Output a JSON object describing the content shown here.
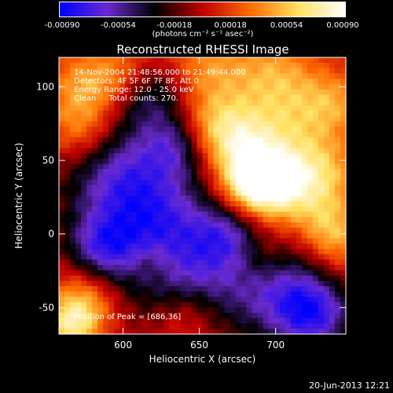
{
  "colorbar": {
    "tick_labels": [
      "-0.00090",
      "-0.00054",
      "-0.00018",
      "0.00018",
      "0.00054",
      "0.00090"
    ],
    "unit_label": "(photons cm⁻² s⁻¹ asec⁻²)"
  },
  "info": {
    "time_range": "14-Nov-2004 21:48:56.000 to 21:49:44.000",
    "detectors": "Detectors: 4F 5F 6F 7F 8F, Att 0",
    "energy_range": "Energy Range: 12.0 - 25.0 keV",
    "method_counts": "Clean     Total counts: 270.",
    "peak_position": "Position of Peak = [686,36]"
  },
  "footer": {
    "date": "20-Jun-2013 12:21"
  },
  "chart_data": {
    "type": "heatmap",
    "title": "Reconstructed RHESSI Image",
    "xlabel": "Heliocentric X (arcsec)",
    "ylabel": "Heliocentric Y (arcsec)",
    "xlim": [
      558,
      746
    ],
    "ylim": [
      -68,
      120
    ],
    "x_ticks": [
      600,
      650,
      700
    ],
    "y_ticks": [
      -50,
      0,
      50,
      100
    ],
    "color_range": [
      -0.0009,
      0.0009
    ],
    "peak": [
      686,
      36
    ],
    "colormap": [
      "#0000ff",
      "#6a2ad0",
      "#000000",
      "#c00000",
      "#ff6a00",
      "#ffe060",
      "#ffffff"
    ],
    "features": [
      {
        "x": 686,
        "y": 36,
        "amp": 0.95,
        "w": 16
      },
      {
        "x": 705,
        "y": 30,
        "amp": 0.55,
        "w": 20
      },
      {
        "x": 680,
        "y": 65,
        "amp": 0.45,
        "w": 18
      },
      {
        "x": 715,
        "y": 80,
        "amp": 0.4,
        "w": 22
      },
      {
        "x": 730,
        "y": 40,
        "amp": 0.45,
        "w": 18
      },
      {
        "x": 740,
        "y": 90,
        "amp": 0.3,
        "w": 15
      },
      {
        "x": 660,
        "y": 70,
        "amp": 0.4,
        "w": 16
      },
      {
        "x": 655,
        "y": 110,
        "amp": 0.45,
        "w": 22
      },
      {
        "x": 700,
        "y": 110,
        "amp": 0.35,
        "w": 18
      },
      {
        "x": 575,
        "y": 100,
        "amp": 0.45,
        "w": 18
      },
      {
        "x": 572,
        "y": 70,
        "amp": 0.4,
        "w": 16
      },
      {
        "x": 600,
        "y": 110,
        "amp": 0.3,
        "w": 15
      },
      {
        "x": 575,
        "y": -45,
        "amp": 0.5,
        "w": 16
      },
      {
        "x": 566,
        "y": -62,
        "amp": 0.6,
        "w": 12
      },
      {
        "x": 640,
        "y": -55,
        "amp": 0.35,
        "w": 16
      },
      {
        "x": 690,
        "y": -15,
        "amp": 0.3,
        "w": 14
      },
      {
        "x": 740,
        "y": -10,
        "amp": 0.3,
        "w": 16
      },
      {
        "x": 735,
        "y": 5,
        "amp": 0.35,
        "w": 14
      },
      {
        "x": 620,
        "y": -20,
        "amp": 0.25,
        "w": 12
      },
      {
        "x": 600,
        "y": 40,
        "amp": -0.6,
        "w": 28
      },
      {
        "x": 620,
        "y": 5,
        "amp": -0.55,
        "w": 30
      },
      {
        "x": 640,
        "y": -30,
        "amp": -0.5,
        "w": 28
      },
      {
        "x": 700,
        "y": -35,
        "amp": -0.6,
        "w": 26
      },
      {
        "x": 725,
        "y": -55,
        "amp": -0.7,
        "w": 18
      },
      {
        "x": 620,
        "y": 95,
        "amp": -0.5,
        "w": 18
      },
      {
        "x": 635,
        "y": 60,
        "amp": -0.4,
        "w": 14
      },
      {
        "x": 585,
        "y": -10,
        "amp": -0.5,
        "w": 16
      },
      {
        "x": 670,
        "y": 0,
        "amp": -0.45,
        "w": 16
      }
    ]
  }
}
